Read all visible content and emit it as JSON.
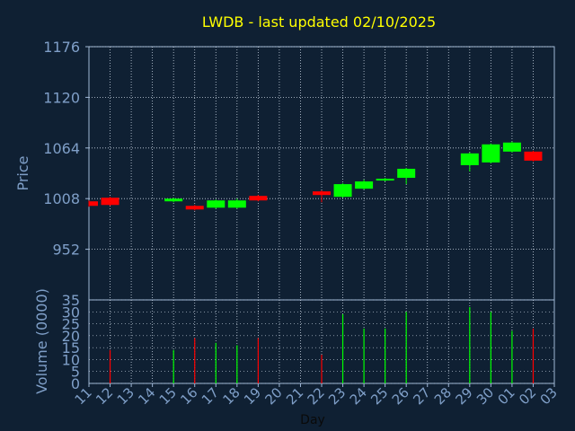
{
  "chart_data": [
    {
      "type": "candlestick",
      "title": "LWDB - last updated 02/10/2025",
      "ylabel": "Price",
      "ylim": [
        896,
        1176
      ],
      "yticks": [
        "1176",
        "1120",
        "1064",
        "1008",
        "952"
      ],
      "x": [
        "11",
        "12",
        "13",
        "14",
        "15",
        "16",
        "17",
        "18",
        "19",
        "20",
        "21",
        "22",
        "23",
        "24",
        "25",
        "26",
        "27",
        "28",
        "29",
        "30",
        "01",
        "02",
        "03"
      ],
      "grid": true,
      "candles": [
        {
          "day": "11",
          "open": 1005,
          "close": 1000,
          "high": 1006,
          "low": 999
        },
        {
          "day": "12",
          "open": 1009,
          "close": 1001,
          "high": 1010,
          "low": 1000
        },
        {
          "day": "15",
          "open": 1005,
          "close": 1008,
          "high": 1009,
          "low": 1004
        },
        {
          "day": "16",
          "open": 1000,
          "close": 996,
          "high": 1001,
          "low": 995
        },
        {
          "day": "17",
          "open": 998,
          "close": 1006,
          "high": 1007,
          "low": 997
        },
        {
          "day": "18",
          "open": 998,
          "close": 1006,
          "high": 1008,
          "low": 997
        },
        {
          "day": "19",
          "open": 1011,
          "close": 1006,
          "high": 1012,
          "low": 1005
        },
        {
          "day": "22",
          "open": 1016,
          "close": 1012,
          "high": 1017,
          "low": 1004
        },
        {
          "day": "23",
          "open": 1010,
          "close": 1024,
          "high": 1025,
          "low": 1009
        },
        {
          "day": "24",
          "open": 1019,
          "close": 1027,
          "high": 1029,
          "low": 1018
        },
        {
          "day": "25",
          "open": 1028,
          "close": 1030,
          "high": 1031,
          "low": 1027
        },
        {
          "day": "26",
          "open": 1031,
          "close": 1041,
          "high": 1042,
          "low": 1024
        },
        {
          "day": "29",
          "open": 1045,
          "close": 1058,
          "high": 1059,
          "low": 1038
        },
        {
          "day": "30",
          "open": 1048,
          "close": 1068,
          "high": 1069,
          "low": 1047
        },
        {
          "day": "01",
          "open": 1060,
          "close": 1070,
          "high": 1071,
          "low": 1059
        },
        {
          "day": "02",
          "open": 1060,
          "close": 1050,
          "high": 1061,
          "low": 1049
        }
      ],
      "colors": {
        "up": "#00ff00",
        "down": "#ff0000"
      }
    },
    {
      "type": "bar",
      "ylabel": "Volume (0000)",
      "xlabel": "Day",
      "ylim": [
        0,
        35
      ],
      "yticks": [
        "0",
        "5",
        "10",
        "15",
        "20",
        "25",
        "30",
        "35"
      ],
      "x": [
        "11",
        "12",
        "13",
        "14",
        "15",
        "16",
        "17",
        "18",
        "19",
        "20",
        "21",
        "22",
        "23",
        "24",
        "25",
        "26",
        "27",
        "28",
        "29",
        "30",
        "01",
        "02",
        "03"
      ],
      "grid": true,
      "bars": [
        {
          "day": "12",
          "value": 14,
          "direction": "down"
        },
        {
          "day": "15",
          "value": 14,
          "direction": "up"
        },
        {
          "day": "16",
          "value": 19,
          "direction": "down"
        },
        {
          "day": "17",
          "value": 17,
          "direction": "up"
        },
        {
          "day": "18",
          "value": 16,
          "direction": "up"
        },
        {
          "day": "19",
          "value": 19,
          "direction": "down"
        },
        {
          "day": "22",
          "value": 12,
          "direction": "down"
        },
        {
          "day": "23",
          "value": 29,
          "direction": "up"
        },
        {
          "day": "24",
          "value": 23,
          "direction": "up"
        },
        {
          "day": "25",
          "value": 23,
          "direction": "up"
        },
        {
          "day": "26",
          "value": 30,
          "direction": "up"
        },
        {
          "day": "29",
          "value": 32,
          "direction": "up"
        },
        {
          "day": "30",
          "value": 30,
          "direction": "up"
        },
        {
          "day": "01",
          "value": 22,
          "direction": "up"
        },
        {
          "day": "02",
          "value": 23,
          "direction": "down"
        }
      ],
      "colors": {
        "up": "#00ff00",
        "down": "#ff0000"
      }
    }
  ],
  "theme": {
    "background": "#0f2033",
    "title_color": "#ffff00",
    "label_color": "#7f9fc8",
    "axis_color": "#9fb7d6",
    "grid_color": "#c8d4e2"
  }
}
